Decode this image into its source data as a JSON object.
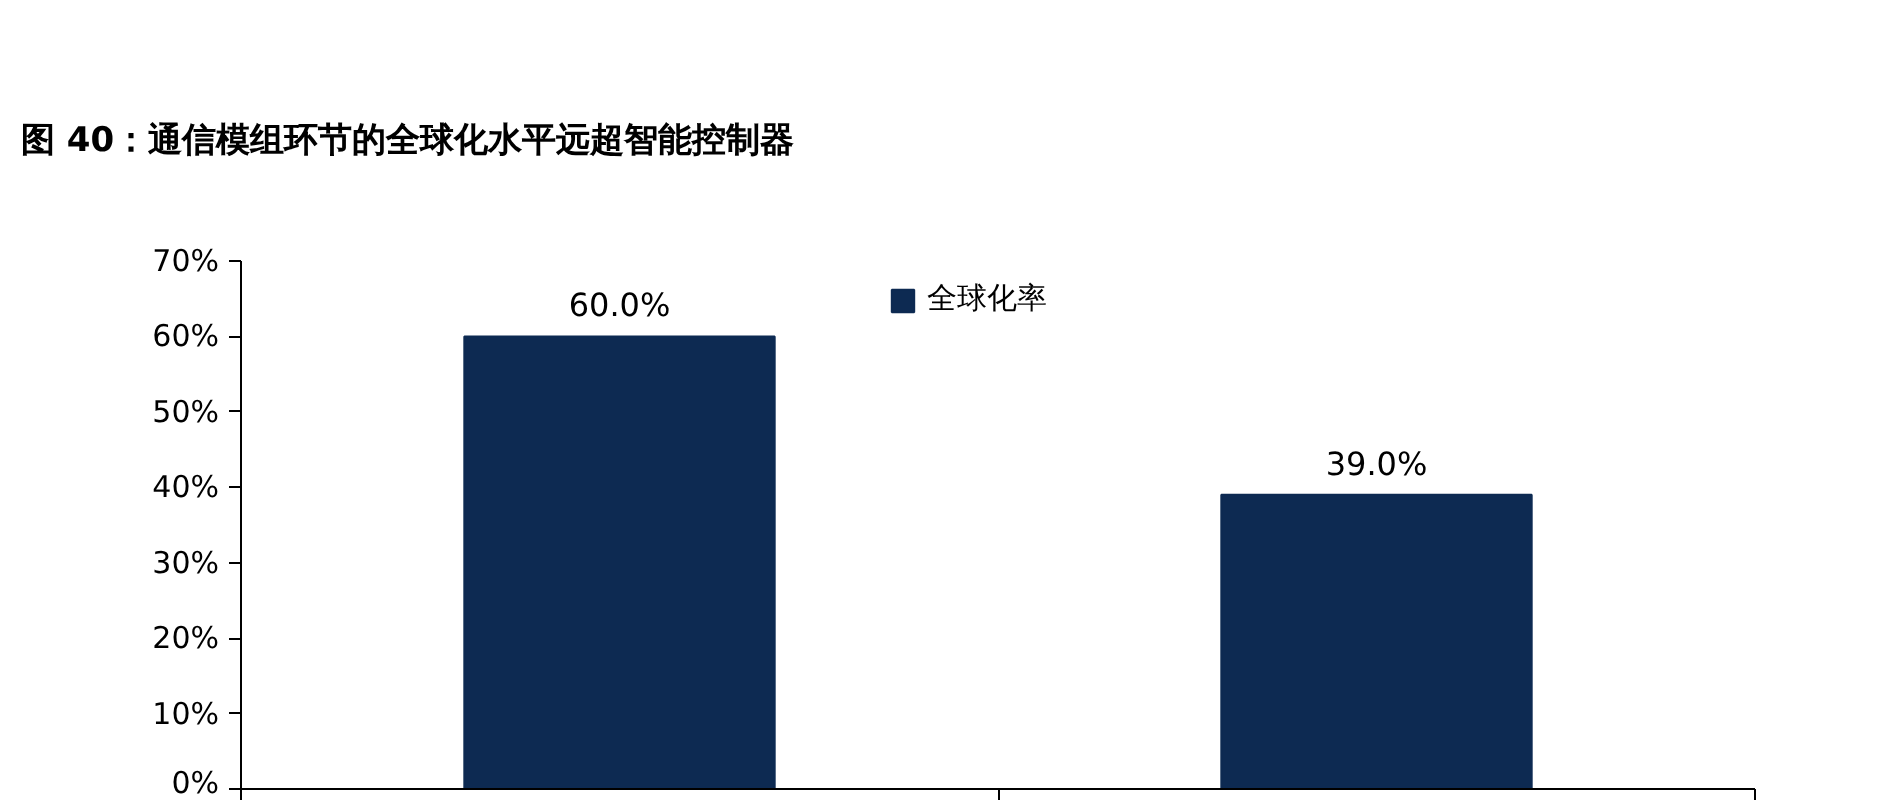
{
  "chart_data": {
    "type": "bar",
    "title": "图 40：通信模组环节的全球化水平远超智能控制器",
    "categories": [
      null,
      null
    ],
    "series": [
      {
        "name": "全球化率",
        "color": "#0d2a52",
        "values": [
          60,
          39
        ],
        "value_labels": [
          "60.0%",
          "39.0%"
        ]
      }
    ],
    "ylim": [
      0,
      70
    ],
    "yticks": [
      {
        "value": 0,
        "label": "0%"
      },
      {
        "value": 10,
        "label": "10%"
      },
      {
        "value": 20,
        "label": "20%"
      },
      {
        "value": 30,
        "label": "30%"
      },
      {
        "value": 40,
        "label": "40%"
      },
      {
        "value": 50,
        "label": "50%"
      },
      {
        "value": 60,
        "label": "60%"
      },
      {
        "value": 70,
        "label": "70%"
      }
    ],
    "legend": "top",
    "grid": false,
    "tick_labels": "y"
  }
}
